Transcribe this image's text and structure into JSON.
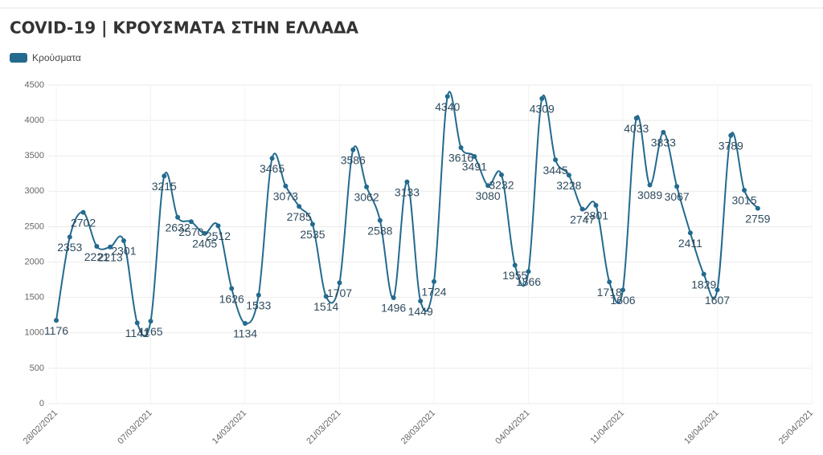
{
  "chart_data": {
    "type": "line",
    "title": "COVID-19 | ΚΡΟΥΣΜΑΤΑ ΣΤΗΝ ΕΛΛΑΔΑ",
    "x": [
      "28/02/2021",
      "01/03/2021",
      "02/03/2021",
      "03/03/2021",
      "04/03/2021",
      "05/03/2021",
      "06/03/2021",
      "07/03/2021",
      "08/03/2021",
      "09/03/2021",
      "10/03/2021",
      "11/03/2021",
      "12/03/2021",
      "13/03/2021",
      "14/03/2021",
      "15/03/2021",
      "16/03/2021",
      "17/03/2021",
      "18/03/2021",
      "19/03/2021",
      "20/03/2021",
      "21/03/2021",
      "22/03/2021",
      "23/03/2021",
      "24/03/2021",
      "25/03/2021",
      "26/03/2021",
      "27/03/2021",
      "28/03/2021",
      "29/03/2021",
      "30/03/2021",
      "31/03/2021",
      "01/04/2021",
      "02/04/2021",
      "03/04/2021",
      "04/04/2021",
      "05/04/2021",
      "06/04/2021",
      "07/04/2021",
      "08/04/2021",
      "09/04/2021",
      "10/04/2021",
      "11/04/2021",
      "12/04/2021",
      "13/04/2021",
      "14/04/2021",
      "15/04/2021",
      "16/04/2021",
      "17/04/2021",
      "18/04/2021",
      "19/04/2021",
      "20/04/2021",
      "21/04/2021"
    ],
    "series": [
      {
        "name": "Κρούσματα",
        "color": "#236a8e",
        "values": [
          1176,
          2353,
          2702,
          2221,
          2213,
          2301,
          1141,
          1165,
          3215,
          2632,
          2570,
          2405,
          2512,
          1626,
          1134,
          1533,
          3465,
          3073,
          2785,
          2535,
          1514,
          1707,
          3586,
          3062,
          2588,
          1496,
          3133,
          1449,
          1724,
          4340,
          3616,
          3491,
          3080,
          3232,
          1955,
          1866,
          4309,
          3445,
          3228,
          2747,
          2801,
          1718,
          1606,
          4033,
          3089,
          3833,
          3067,
          2411,
          1829,
          1607,
          3789,
          3015,
          2759
        ]
      }
    ],
    "xlim": [
      "28/02/2021",
      "25/04/2021"
    ],
    "xticks": [
      "28/02/2021",
      "07/03/2021",
      "14/03/2021",
      "21/03/2021",
      "28/03/2021",
      "04/04/2021",
      "11/04/2021",
      "18/04/2021",
      "25/04/2021"
    ],
    "ylim": [
      0,
      4500
    ],
    "yticks": [
      0,
      500,
      1000,
      1500,
      2000,
      2500,
      3000,
      3500,
      4000,
      4500
    ],
    "grid": true,
    "legend": "top-left"
  }
}
